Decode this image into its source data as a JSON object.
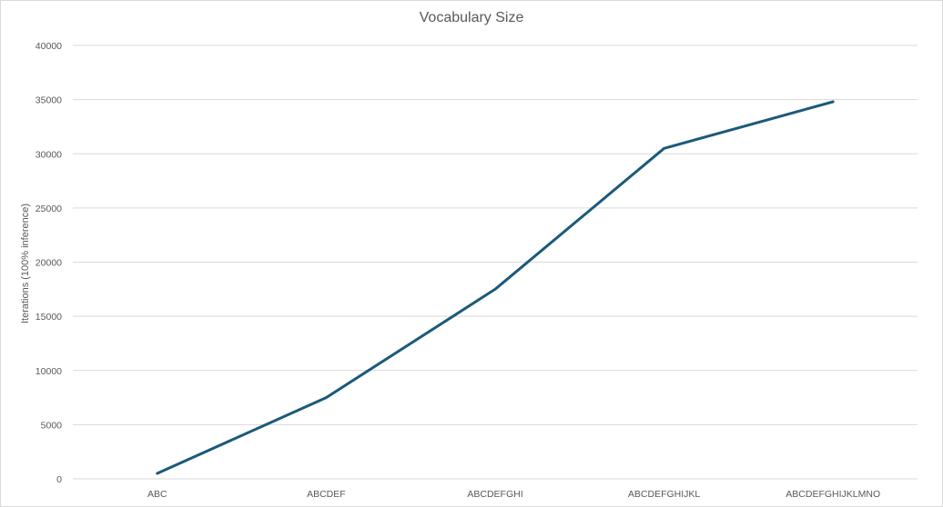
{
  "chart_data": {
    "type": "line",
    "title": "Vocabulary Size",
    "xlabel": "",
    "ylabel": "Iterations (100% inference)",
    "categories": [
      "ABC",
      "ABCDEF",
      "ABCDEFGHI",
      "ABCDEFGHIJKL",
      "ABCDEFGHIJKLMNO"
    ],
    "series": [
      {
        "values": [
          500,
          7500,
          17500,
          30500,
          34800
        ]
      }
    ],
    "ylim": [
      0,
      40000
    ],
    "yticks": [
      0,
      5000,
      10000,
      15000,
      20000,
      25000,
      30000,
      35000,
      40000
    ],
    "grid": true,
    "legend": "none",
    "colors": {
      "line": "#1b5a7a",
      "grid": "#d9d9d9",
      "text": "#595959"
    }
  }
}
